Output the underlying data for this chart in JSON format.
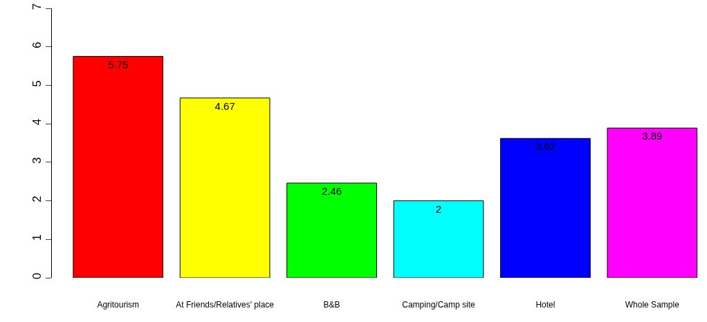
{
  "chart_data": {
    "type": "bar",
    "categories": [
      "Agritourism",
      "At Friends/Relatives' place",
      "B&B",
      "Camping/Camp site",
      "Hotel",
      "Whole Sample"
    ],
    "values": [
      5.75,
      4.67,
      2.46,
      2,
      3.62,
      3.89
    ],
    "colors": [
      "#ff0000",
      "#ffff00",
      "#00ff00",
      "#00ffff",
      "#0000ff",
      "#ff00ff"
    ],
    "ylim": [
      0,
      7
    ],
    "yticks": [
      0,
      1,
      2,
      3,
      4,
      5,
      6,
      7
    ],
    "data_labels": true
  }
}
